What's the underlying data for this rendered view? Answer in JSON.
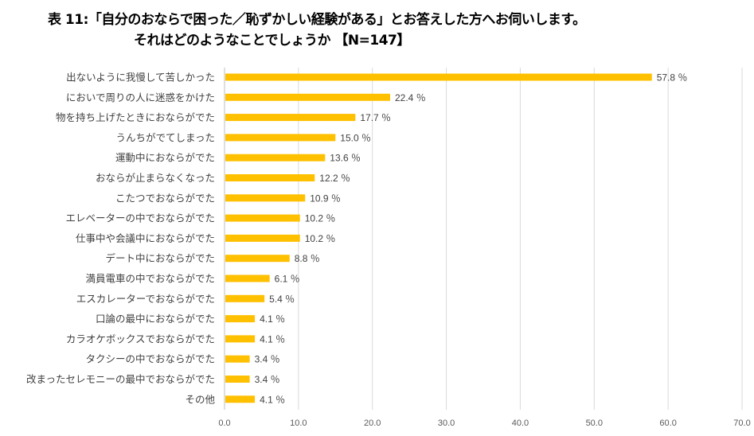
{
  "chart_data": {
    "type": "bar",
    "orientation": "horizontal",
    "title": "表 11:「自分のおならで困った／恥ずかしい経験がある」とお答えした方へお伺いします。",
    "subtitle": "それはどのようなことでしょうか 【N=147】",
    "categories": [
      "出ないように我慢して苦しかった",
      "においで周りの人に迷惑をかけた",
      "物を持ち上げたときにおならがでた",
      "うんちがでてしまった",
      "運動中におならがでた",
      "おならが止まらなくなった",
      "こたつでおならがでた",
      "エレベーターの中でおならがでた",
      "仕事中や会議中におならがでた",
      "デート中におならがでた",
      "満員電車の中でおならがでた",
      "エスカレーターでおならがでた",
      "口論の最中におならがでた",
      "カラオケボックスでおならがでた",
      "タクシーの中でおならがでた",
      "改まったセレモニーの最中でおならがでた",
      "その他"
    ],
    "values": [
      57.8,
      22.4,
      17.7,
      15.0,
      13.6,
      12.2,
      10.9,
      10.2,
      10.2,
      8.8,
      6.1,
      5.4,
      4.1,
      4.1,
      3.4,
      3.4,
      4.1
    ],
    "value_suffix": "％",
    "xlim": [
      0,
      70
    ],
    "xticks": [
      "0.0",
      "10.0",
      "20.0",
      "30.0",
      "40.0",
      "50.0",
      "60.0",
      "70.0"
    ],
    "grid": true,
    "bar_color": "#FFC000",
    "xlabel": "",
    "ylabel": ""
  }
}
